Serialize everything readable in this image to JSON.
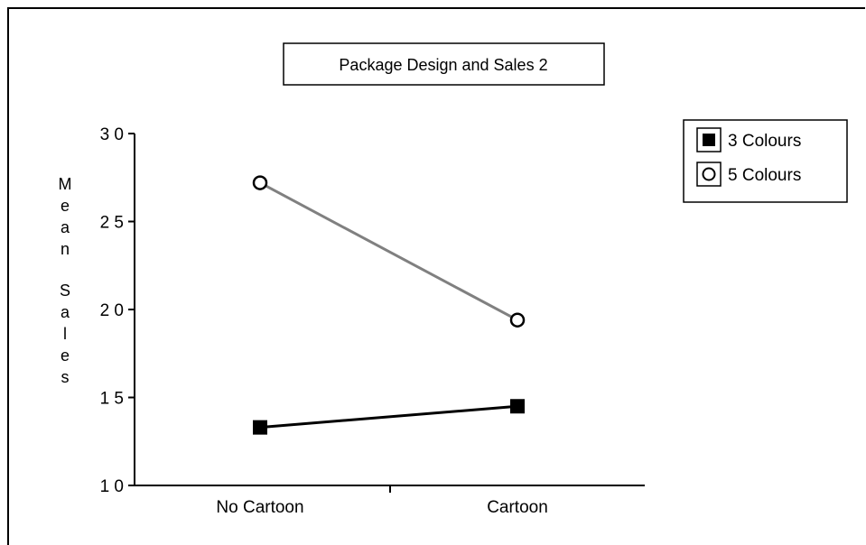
{
  "chart_data": {
    "type": "line",
    "title": "Package Design and Sales 2",
    "xlabel": "",
    "ylabel": "Mean Sales",
    "categories": [
      "No Cartoon",
      "Cartoon"
    ],
    "ylim": [
      10,
      30
    ],
    "yticks": [
      10,
      15,
      20,
      25,
      30
    ],
    "ytick_labels": [
      "1 0",
      "1 5",
      "2 0",
      "2 5",
      "3 0"
    ],
    "grid": false,
    "legend_position": "right",
    "series": [
      {
        "name": "3 Colours",
        "values": [
          13.3,
          14.5
        ],
        "marker": "filled-square",
        "color": "#000000"
      },
      {
        "name": "5 Colours",
        "values": [
          27.2,
          19.4
        ],
        "marker": "open-circle",
        "color": "#808080"
      }
    ]
  }
}
